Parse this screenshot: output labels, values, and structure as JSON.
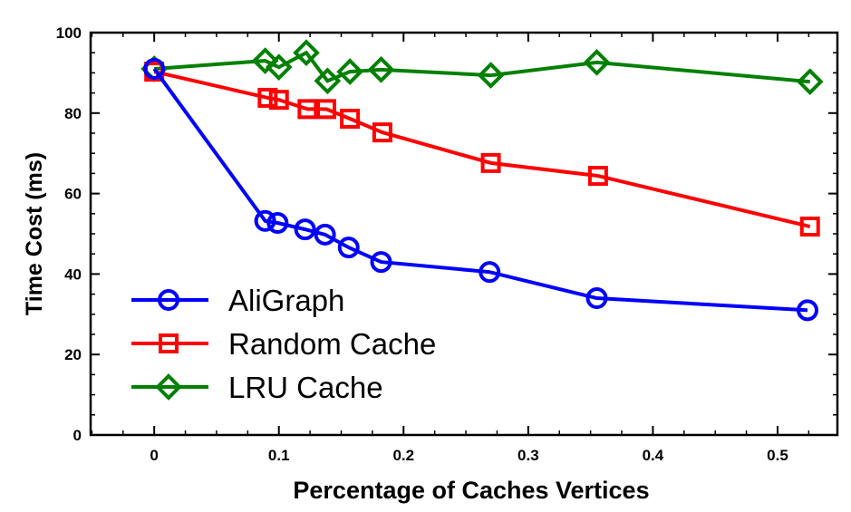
{
  "chart_data": {
    "type": "line",
    "title": "",
    "xlabel": "Percentage of Caches Vertices",
    "ylabel": "Time Cost (ms)",
    "xlim": [
      -0.051,
      0.548
    ],
    "ylim": [
      0,
      100
    ],
    "xticks": [
      0,
      0.1,
      0.2,
      0.3,
      0.4,
      0.5
    ],
    "xtick_labels": [
      "0",
      "0.1",
      "0.2",
      "0.3",
      "0.4",
      "0.5"
    ],
    "yticks": [
      0,
      20,
      40,
      60,
      80,
      100
    ],
    "ytick_labels": [
      "0",
      "20",
      "40",
      "60",
      "80",
      "100"
    ],
    "grid": false,
    "legend_position": "bottom-left",
    "series": [
      {
        "name": "AliGraph",
        "color": "#0000ff",
        "marker": "circle",
        "x": [
          0,
          0.089,
          0.099,
          0.121,
          0.137,
          0.156,
          0.182,
          0.269,
          0.355,
          0.524
        ],
        "y": [
          91,
          53.2,
          52.7,
          51.1,
          49.8,
          46.6,
          43,
          40.5,
          34,
          31
        ]
      },
      {
        "name": "Random Cache",
        "color": "#ff0000",
        "marker": "square",
        "x": [
          0,
          0.091,
          0.1,
          0.123,
          0.138,
          0.157,
          0.183,
          0.27,
          0.356,
          0.526
        ],
        "y": [
          90.3,
          83.8,
          83.3,
          81,
          81,
          78.6,
          75.2,
          67.6,
          64.4,
          51.8
        ]
      },
      {
        "name": "LRU Cache",
        "color": "#008000",
        "marker": "diamond",
        "x": [
          0,
          0.089,
          0.1,
          0.122,
          0.139,
          0.157,
          0.182,
          0.27,
          0.355,
          0.526
        ],
        "y": [
          91,
          93,
          91.4,
          95,
          88,
          90.3,
          90.8,
          89.4,
          92.6,
          87.8
        ]
      }
    ]
  }
}
